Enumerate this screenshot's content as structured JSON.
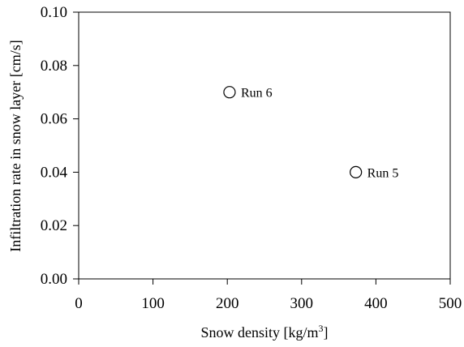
{
  "chart_data": {
    "type": "scatter",
    "title": "",
    "xlabel": {
      "prefix": "Snow density [kg/m",
      "sup": "3",
      "suffix": "]"
    },
    "ylabel": "Infiltration rate in snow layer [cm/s]",
    "xlim": [
      0,
      500
    ],
    "ylim": [
      0,
      0.1
    ],
    "x_ticks": [
      "0",
      "100",
      "200",
      "300",
      "400",
      "500"
    ],
    "y_ticks": [
      "0.00",
      "0.02",
      "0.04",
      "0.06",
      "0.08",
      "0.10"
    ],
    "grid": false,
    "points": [
      {
        "x": 203,
        "y": 0.07,
        "label": "Run 6"
      },
      {
        "x": 373,
        "y": 0.04,
        "label": "Run 5"
      }
    ]
  }
}
